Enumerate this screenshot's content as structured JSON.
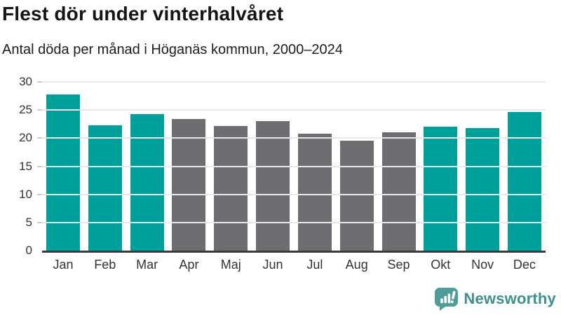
{
  "header": {
    "title": "Flest dör under vinterhalvåret",
    "subtitle": "Antal döda per månad i Höganäs kommun, 2000–2024"
  },
  "chart_data": {
    "type": "bar",
    "title": "Flest dör under vinterhalvåret",
    "subtitle": "Antal döda per månad i Höganäs kommun, 2000–2024",
    "categories": [
      "Jan",
      "Feb",
      "Mar",
      "Apr",
      "Maj",
      "Jun",
      "Jul",
      "Aug",
      "Sep",
      "Okt",
      "Nov",
      "Dec"
    ],
    "values": [
      27.8,
      22.3,
      24.3,
      23.4,
      22.1,
      23.0,
      20.8,
      19.5,
      21.1,
      22.0,
      21.8,
      24.7
    ],
    "bar_colors": [
      "#00a09a",
      "#00a09a",
      "#00a09a",
      "#6e6e72",
      "#6e6e72",
      "#6e6e72",
      "#6e6e72",
      "#6e6e72",
      "#6e6e72",
      "#00a09a",
      "#00a09a",
      "#00a09a"
    ],
    "highlighted_months": [
      "Jan",
      "Feb",
      "Mar",
      "Okt",
      "Nov",
      "Dec"
    ],
    "xlabel": "",
    "ylabel": "",
    "ylim": [
      0,
      30
    ],
    "yticks": [
      0,
      5,
      10,
      15,
      20,
      25,
      30
    ],
    "grid": true,
    "legend": false
  },
  "colors": {
    "bar_winter": "#00a09a",
    "bar_summer": "#6e6e72",
    "gridline": "#e8e8e8",
    "axis_line": "#3a3a3a",
    "tick_label": "#333333",
    "logo_teal": "#3e918c",
    "logo_icon_teal": "#4e9d98"
  },
  "footer": {
    "brand": "Newsworthy",
    "logo_icon": "newsworthy-speech-bubble-bar-chart-icon"
  }
}
